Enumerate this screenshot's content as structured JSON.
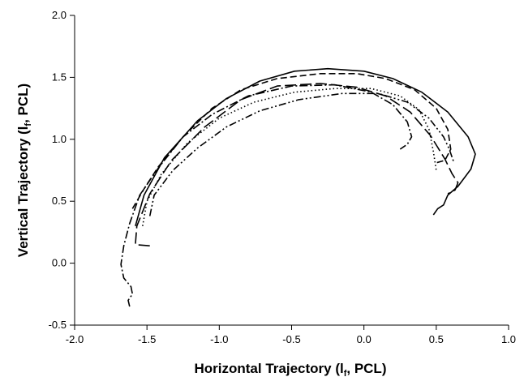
{
  "chart_data": {
    "type": "line",
    "title": "",
    "xlabel": {
      "prefix": "Horizontal Trajectory (l",
      "subscript": "f",
      "suffix": ", PCL)"
    },
    "ylabel": {
      "prefix": "Vertical Trajectory (l",
      "subscript": "f",
      "suffix": ", PCL)"
    },
    "xlim": [
      -2.0,
      1.0
    ],
    "ylim": [
      -0.5,
      2.0
    ],
    "xticks": [
      -2.0,
      -1.5,
      -1.0,
      -0.5,
      0.0,
      0.5,
      1.0
    ],
    "xtick_labels": [
      "-2.0",
      "-1.5",
      "-1.0",
      "-0.5",
      "0.0",
      "0.5",
      "1.0"
    ],
    "yticks": [
      -0.5,
      0.0,
      0.5,
      1.0,
      1.5,
      2.0
    ],
    "ytick_labels": [
      "-0.5",
      "0.0",
      "0.5",
      "1.0",
      "1.5",
      "2.0"
    ],
    "grid": false,
    "legend": "none",
    "series": [
      {
        "dash": "solid",
        "points": [
          [
            -1.58,
            0.3
          ],
          [
            -1.52,
            0.55
          ],
          [
            -1.38,
            0.85
          ],
          [
            -1.15,
            1.15
          ],
          [
            -0.95,
            1.33
          ],
          [
            -0.72,
            1.47
          ],
          [
            -0.48,
            1.55
          ],
          [
            -0.25,
            1.57
          ],
          [
            0.0,
            1.55
          ],
          [
            0.2,
            1.49
          ],
          [
            0.4,
            1.38
          ],
          [
            0.58,
            1.22
          ],
          [
            0.72,
            1.02
          ],
          [
            0.77,
            0.88
          ],
          [
            0.74,
            0.76
          ],
          [
            0.65,
            0.62
          ],
          [
            0.58,
            0.55
          ],
          [
            0.55,
            0.47
          ],
          [
            0.51,
            0.44
          ],
          [
            0.48,
            0.39
          ]
        ]
      },
      {
        "dash": "long-dash",
        "points": [
          [
            -1.48,
            0.14
          ],
          [
            -1.58,
            0.15
          ],
          [
            -1.57,
            0.3
          ],
          [
            -1.48,
            0.56
          ],
          [
            -1.33,
            0.83
          ],
          [
            -1.1,
            1.1
          ],
          [
            -0.85,
            1.32
          ],
          [
            -0.6,
            1.43
          ],
          [
            -0.3,
            1.45
          ],
          [
            -0.05,
            1.42
          ],
          [
            0.15,
            1.35
          ],
          [
            0.32,
            1.22
          ],
          [
            0.46,
            1.03
          ],
          [
            0.56,
            0.84
          ],
          [
            0.61,
            0.72
          ],
          [
            0.65,
            0.65
          ],
          [
            0.63,
            0.59
          ],
          [
            0.58,
            0.56
          ]
        ]
      },
      {
        "dash": "short-dash",
        "points": [
          [
            -1.6,
            0.44
          ],
          [
            -1.52,
            0.6
          ],
          [
            -1.42,
            0.78
          ],
          [
            -1.25,
            1.02
          ],
          [
            -1.05,
            1.25
          ],
          [
            -0.85,
            1.4
          ],
          [
            -0.6,
            1.49
          ],
          [
            -0.3,
            1.53
          ],
          [
            -0.05,
            1.53
          ],
          [
            0.15,
            1.49
          ],
          [
            0.35,
            1.4
          ],
          [
            0.5,
            1.25
          ],
          [
            0.58,
            1.08
          ],
          [
            0.6,
            0.92
          ],
          [
            0.56,
            0.83
          ],
          [
            0.5,
            0.81
          ]
        ]
      },
      {
        "dash": "dotted",
        "points": [
          [
            -1.53,
            0.3
          ],
          [
            -1.5,
            0.5
          ],
          [
            -1.4,
            0.72
          ],
          [
            -1.22,
            0.97
          ],
          [
            -1.0,
            1.17
          ],
          [
            -0.76,
            1.3
          ],
          [
            -0.48,
            1.38
          ],
          [
            -0.2,
            1.41
          ],
          [
            0.05,
            1.41
          ],
          [
            0.25,
            1.35
          ],
          [
            0.38,
            1.24
          ],
          [
            0.45,
            1.08
          ],
          [
            0.48,
            0.9
          ],
          [
            0.5,
            0.75
          ]
        ]
      },
      {
        "dash": "dash-dot",
        "points": [
          [
            -1.62,
            -0.35
          ],
          [
            -1.63,
            -0.3
          ],
          [
            -1.6,
            -0.25
          ],
          [
            -1.61,
            -0.19
          ],
          [
            -1.66,
            -0.12
          ],
          [
            -1.68,
            -0.01
          ],
          [
            -1.66,
            0.14
          ],
          [
            -1.62,
            0.32
          ],
          [
            -1.55,
            0.55
          ],
          [
            -1.42,
            0.77
          ],
          [
            -1.25,
            1.02
          ],
          [
            -1.05,
            1.2
          ],
          [
            -0.8,
            1.35
          ],
          [
            -0.5,
            1.43
          ],
          [
            -0.2,
            1.44
          ],
          [
            0.05,
            1.38
          ],
          [
            0.2,
            1.28
          ],
          [
            0.3,
            1.14
          ],
          [
            0.33,
            1.02
          ],
          [
            0.3,
            0.96
          ],
          [
            0.25,
            0.92
          ]
        ]
      },
      {
        "dash": "dash-dot-dot",
        "points": [
          [
            -1.48,
            0.38
          ],
          [
            -1.45,
            0.55
          ],
          [
            -1.32,
            0.75
          ],
          [
            -1.15,
            0.93
          ],
          [
            -0.95,
            1.1
          ],
          [
            -0.72,
            1.23
          ],
          [
            -0.45,
            1.32
          ],
          [
            -0.15,
            1.37
          ],
          [
            0.1,
            1.37
          ],
          [
            0.3,
            1.3
          ],
          [
            0.45,
            1.17
          ],
          [
            0.55,
            1.02
          ],
          [
            0.59,
            0.92
          ],
          [
            0.62,
            0.82
          ]
        ]
      }
    ]
  }
}
